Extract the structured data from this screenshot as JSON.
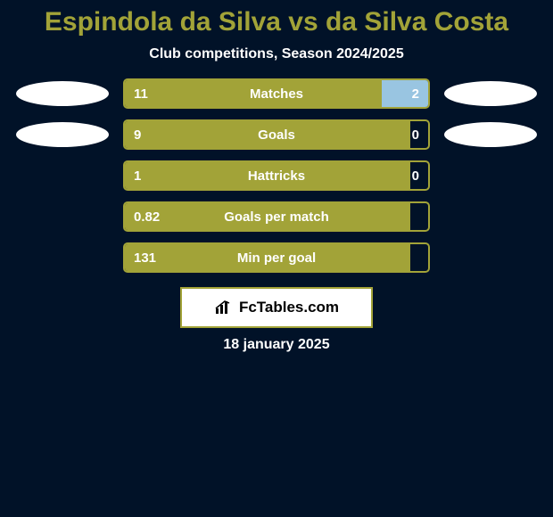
{
  "title": {
    "text": "Espindola da Silva vs da Silva Costa",
    "color": "#a2a338",
    "fontsize": 30
  },
  "subtitle": {
    "text": "Club competitions, Season 2024/2025",
    "color": "#ffffff",
    "fontsize": 16
  },
  "colors": {
    "background": "#011228",
    "bar_left": "#a2a338",
    "bar_right": "#99c5e1",
    "border": "#a2a338",
    "avatar": "#ffffff",
    "bar_empty": "transparent",
    "text": "#ffffff",
    "value_fontsize": 15,
    "label_fontsize": 15
  },
  "stats": [
    {
      "label": "Matches",
      "left_value": "11",
      "right_value": "2",
      "left_pct": 84.6,
      "right_pct": 15.4,
      "show_left_avatar": true,
      "show_right_avatar": true
    },
    {
      "label": "Goals",
      "left_value": "9",
      "right_value": "0",
      "left_pct": 100,
      "right_pct": 0,
      "show_left_avatar": true,
      "show_right_avatar": true
    },
    {
      "label": "Hattricks",
      "left_value": "1",
      "right_value": "0",
      "left_pct": 100,
      "right_pct": 0,
      "show_left_avatar": false,
      "show_right_avatar": false
    },
    {
      "label": "Goals per match",
      "left_value": "0.82",
      "right_value": "",
      "left_pct": 100,
      "right_pct": 0,
      "show_left_avatar": false,
      "show_right_avatar": false
    },
    {
      "label": "Min per goal",
      "left_value": "131",
      "right_value": "",
      "left_pct": 100,
      "right_pct": 0,
      "show_left_avatar": false,
      "show_right_avatar": false
    }
  ],
  "logo": {
    "text": "FcTables.com",
    "fontsize": 17
  },
  "date": {
    "text": "18 january 2025",
    "fontsize": 16
  }
}
